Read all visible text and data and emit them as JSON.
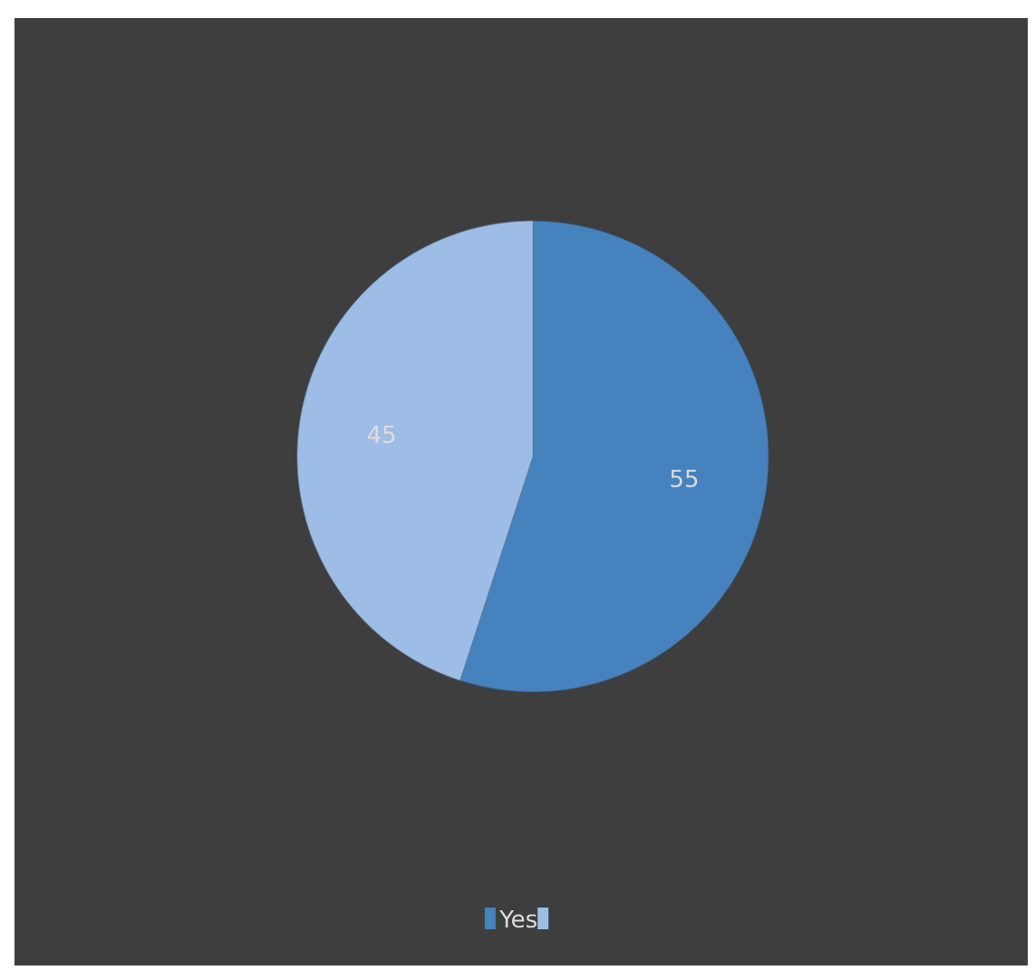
{
  "chart_data": {
    "type": "pie",
    "categories": [
      "Yes",
      null
    ],
    "values": [
      55,
      45
    ],
    "colors": [
      "#4682be",
      "#9dbde6"
    ],
    "data_labels": true,
    "legend": "bottom"
  }
}
